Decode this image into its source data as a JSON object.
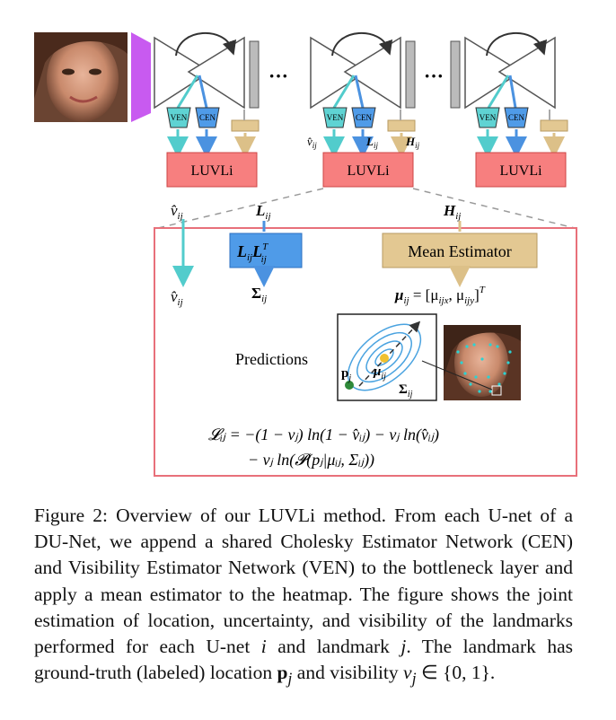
{
  "unet_block": {
    "luvli_label": "LUVLi",
    "ven_label": "VEN",
    "cen_label": "CEN",
    "v_label": "v̂",
    "v_sub": "ij",
    "L_label": "L",
    "L_sub": "ij",
    "H_label": "H",
    "H_sub": "ij",
    "ellipsis": "···"
  },
  "detail": {
    "v_top": "v̂",
    "v_top_sub": "ij",
    "L_top": "L",
    "L_top_sub": "ij",
    "H_top": "H",
    "H_top_sub": "ij",
    "cholesky_L": "L",
    "cholesky_sub": "ij",
    "cholesky_L2": "L",
    "cholesky_sup": "T",
    "cholesky_sub2": "ij",
    "sigma_out": "Σ",
    "sigma_out_sub": "ij",
    "v_out": "v̂",
    "v_out_sub": "ij",
    "mean_estimator": "Mean Estimator",
    "mu_eq_lhs": "μ",
    "mu_eq_lhs_sub": "ij",
    "mu_eq_rhs": " = [μ",
    "mu_eq_rhs_sub1": "ijx",
    "mu_eq_rhs_mid": ", μ",
    "mu_eq_rhs_sub2": "ijy",
    "mu_eq_rhs_end": "]",
    "mu_eq_sup": "T",
    "predictions": "Predictions",
    "p_label": "p",
    "p_sub": "j",
    "mu_label": "μ",
    "mu_sub": "ij",
    "sigma_label": "Σ",
    "sigma_sub": "ij",
    "loss_line1": "𝓛ᵢⱼ = −(1 − vⱼ) ln(1 − v̂ᵢⱼ) − vⱼ ln(v̂ᵢⱼ)",
    "loss_line2": "− vⱼ ln(𝓟(pⱼ|μᵢⱼ, Σᵢⱼ))"
  },
  "caption": {
    "p1": "Figure 2: Overview of our LUVLi method. From each U-net of a DU-Net, we append a shared Cholesky Estimator Network (CEN) and Visibility Estimator Network (VEN) to the bottleneck layer and apply a mean estimator to the heatmap. The figure shows the joint estimation of location, uncertainty, and visibility of the landmarks performed for each U-net ",
    "i_var": "i",
    "p2": " and landmark ",
    "j_var": "j",
    "p3": ". The landmark has ground-truth (labeled) location ",
    "p_var": "p",
    "p_sub": "j",
    "p4": " and visibility ",
    "v_var": "v",
    "v_sub": "j",
    "p5": " ∈ {0, 1}."
  },
  "colors": {
    "luvli_fill": "#f77f7f",
    "ven_fill": "#5fd3d3",
    "cen_fill": "#4f9be8",
    "mean_fill": "#e3c892",
    "purple_wedge": "#c85af0",
    "detail_border": "#e8707a"
  }
}
